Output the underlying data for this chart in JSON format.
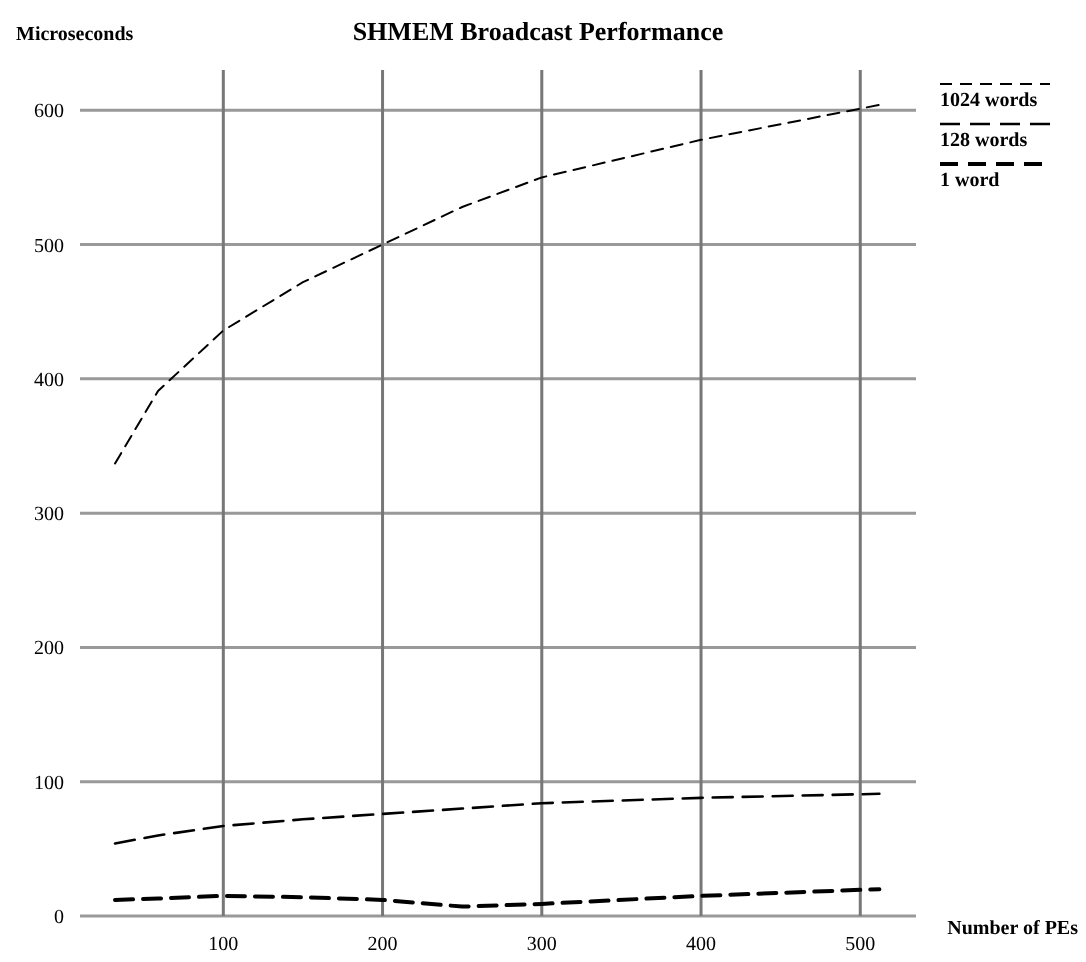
{
  "chart_data": {
    "type": "line",
    "title": "SHMEM Broadcast Performance",
    "xlabel": "Number of PEs",
    "ylabel": "Microseconds",
    "x": [
      32,
      59,
      100,
      150,
      200,
      250,
      300,
      400,
      512
    ],
    "series": [
      {
        "name": "1024 words",
        "color": "#000000",
        "values": [
          337,
          391,
          436,
          472,
          500,
          528,
          550,
          578,
          604
        ]
      },
      {
        "name": "128 words",
        "color": "#000000",
        "values": [
          54,
          60,
          67,
          72,
          76,
          80,
          84,
          88,
          91
        ]
      },
      {
        "name": "1 word",
        "color": "#000000",
        "values": [
          12,
          13,
          15,
          14,
          12,
          7,
          9,
          15,
          20
        ]
      }
    ],
    "xlim": [
      10,
      535
    ],
    "ylim": [
      0,
      630
    ],
    "xticks": [
      100,
      200,
      300,
      400,
      500
    ],
    "yticks": [
      0,
      100,
      200,
      300,
      400,
      500,
      600
    ],
    "grid": true,
    "legend": "top right",
    "line_style": "dashed",
    "marker": "none"
  }
}
